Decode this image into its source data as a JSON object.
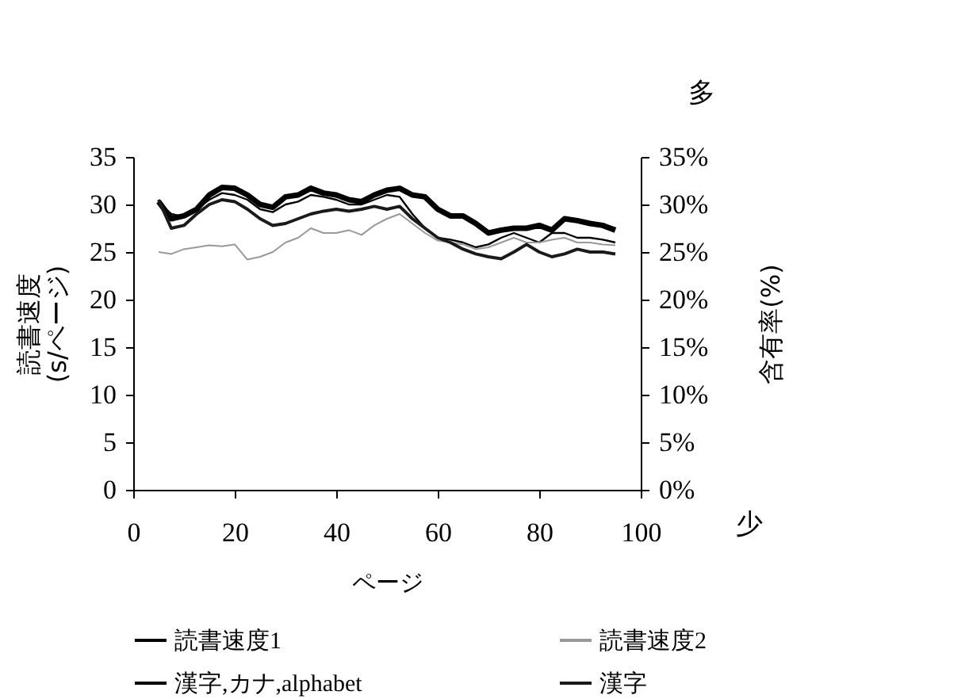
{
  "chart_data": {
    "type": "line",
    "xlabel": "ページ",
    "ylabel": "読書速度\n(s/ページ)",
    "y2label": "含有率(%)",
    "x": [
      5,
      7.5,
      10,
      12.5,
      15,
      17.5,
      20,
      22.5,
      25,
      27.5,
      30,
      32.5,
      35,
      37.5,
      40,
      42.5,
      45,
      47.5,
      50,
      52.5,
      55,
      57.5,
      60,
      62.5,
      65,
      67.5,
      70,
      72.5,
      75,
      77.5,
      80,
      82.5,
      85,
      87.5,
      90,
      92.5,
      95
    ],
    "series": [
      {
        "name": "読書速度1",
        "color": "#000000",
        "values": [
          30.2,
          29,
          28.7,
          29.5,
          30.5,
          31.2,
          31,
          30.5,
          29.5,
          29.2,
          30,
          30.3,
          31,
          30.8,
          30.5,
          30,
          30,
          30.5,
          31,
          30.8,
          29,
          27.5,
          26.5,
          26.3,
          26,
          25.5,
          25.8,
          26.5,
          27,
          26.5,
          26,
          27,
          27,
          26.5,
          26.5,
          26.3,
          26
        ]
      },
      {
        "name": "読書速度2",
        "color": "#999999",
        "values": [
          25,
          24.8,
          25.3,
          25.5,
          25.7,
          25.6,
          25.8,
          24.2,
          24.5,
          25,
          26,
          26.5,
          27.5,
          27,
          27,
          27.3,
          26.8,
          27.8,
          28.5,
          29,
          28,
          27,
          26.2,
          26,
          25.8,
          25.3,
          25.5,
          26,
          26.5,
          26,
          26,
          26.3,
          26.5,
          26,
          26,
          25.8,
          25.7
        ]
      },
      {
        "name": "漢字,カナ,alphabet",
        "color": "#000000",
        "axis": "y2",
        "values": [
          30.3,
          28.5,
          28.8,
          29.5,
          31,
          31.8,
          31.7,
          31,
          30,
          29.7,
          30.8,
          31,
          31.7,
          31.2,
          31,
          30.5,
          30.3,
          31,
          31.5,
          31.7,
          31,
          30.8,
          29.5,
          28.8,
          28.8,
          28,
          27,
          27.3,
          27.5,
          27.5,
          27.8,
          27.3,
          28.5,
          28.3,
          28,
          27.8,
          27.3
        ]
      },
      {
        "name": "漢字",
        "color": "#1a1a1a",
        "axis": "y2",
        "values": [
          30.5,
          27.5,
          27.8,
          29,
          30,
          30.5,
          30.3,
          29.5,
          28.5,
          27.8,
          28,
          28.5,
          29,
          29.3,
          29.5,
          29.3,
          29.5,
          29.8,
          29.5,
          29.8,
          28.5,
          27.5,
          26.5,
          26,
          25.3,
          24.8,
          24.5,
          24.3,
          25,
          25.8,
          25,
          24.5,
          24.8,
          25.3,
          25,
          25,
          24.8
        ]
      }
    ],
    "xlim": [
      0,
      100
    ],
    "xticks": [
      0,
      20,
      40,
      60,
      80,
      100
    ],
    "ylim": [
      0,
      35
    ],
    "yticks": [
      0,
      5,
      10,
      15,
      20,
      25,
      30,
      35
    ],
    "y2lim": [
      0,
      35
    ],
    "y2ticks": [
      {
        "value": 0,
        "label": "0%"
      },
      {
        "value": 5,
        "label": "5%"
      },
      {
        "value": 10,
        "label": "10%"
      },
      {
        "value": 15,
        "label": "15%"
      },
      {
        "value": 20,
        "label": "20%"
      },
      {
        "value": 25,
        "label": "25%"
      },
      {
        "value": 30,
        "label": "30%"
      },
      {
        "value": 35,
        "label": "35%"
      }
    ],
    "annotations": [
      "多",
      "少"
    ],
    "legend": "bottom",
    "grid": false,
    "marker": "none",
    "line_style": "solid"
  }
}
